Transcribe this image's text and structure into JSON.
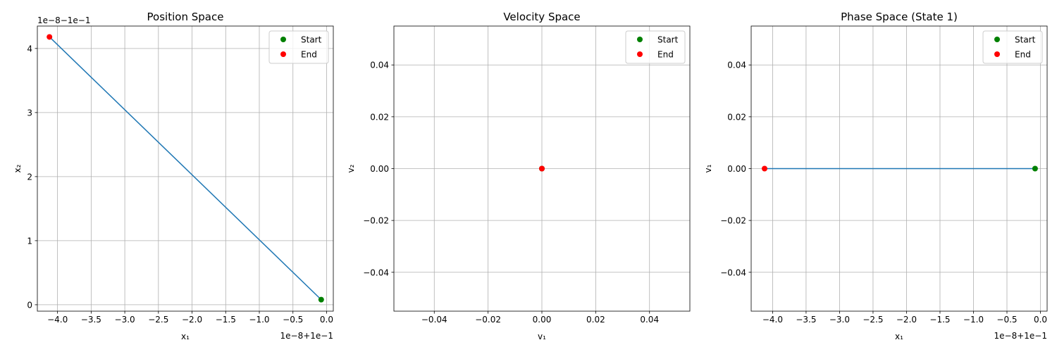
{
  "figure": {
    "background": "#ffffff"
  },
  "chart_data": [
    {
      "type": "line",
      "title": "Position Space",
      "xlabel": "x₁",
      "ylabel": "x₂",
      "xlim": [
        -4.3,
        0.1
      ],
      "ylim": [
        -0.1,
        4.35
      ],
      "xticks": [
        -4.0,
        -3.5,
        -3.0,
        -2.5,
        -2.0,
        -1.5,
        -1.0,
        -0.5,
        0.0
      ],
      "xtick_labels": [
        "−4.0",
        "−3.5",
        "−3.0",
        "−2.5",
        "−2.0",
        "−1.5",
        "−1.0",
        "−0.5",
        "0.0"
      ],
      "yticks": [
        0,
        1,
        2,
        3,
        4
      ],
      "ytick_labels": [
        "0",
        "1",
        "2",
        "3",
        "4"
      ],
      "x_offset_text": "1e−8+1e−1",
      "y_offset_text": "1e−8−1e−1",
      "grid": true,
      "legend_position": "upper-right",
      "series": [
        {
          "color": "#1f77b4",
          "x": [
            -0.08,
            -4.12
          ],
          "y": [
            0.08,
            4.18
          ]
        }
      ],
      "markers": [
        {
          "name": "Start",
          "color": "#008000",
          "x": -0.08,
          "y": 0.08
        },
        {
          "name": "End",
          "color": "#ff0000",
          "x": -4.12,
          "y": 4.18
        }
      ]
    },
    {
      "type": "scatter",
      "title": "Velocity Space",
      "xlabel": "v₁",
      "ylabel": "v₂",
      "xlim": [
        -0.055,
        0.055
      ],
      "ylim": [
        -0.055,
        0.055
      ],
      "xticks": [
        -0.04,
        -0.02,
        0.0,
        0.02,
        0.04
      ],
      "xtick_labels": [
        "−0.04",
        "−0.02",
        "0.00",
        "0.02",
        "0.04"
      ],
      "yticks": [
        -0.04,
        -0.02,
        0.0,
        0.02,
        0.04
      ],
      "ytick_labels": [
        "−0.04",
        "−0.02",
        "0.00",
        "0.02",
        "0.04"
      ],
      "grid": true,
      "legend_position": "upper-right",
      "series": [
        {
          "color": "#1f77b4",
          "x": [
            0.0,
            0.0
          ],
          "y": [
            0.0,
            0.0
          ]
        }
      ],
      "markers": [
        {
          "name": "Start",
          "color": "#008000",
          "x": 0.0,
          "y": 0.0
        },
        {
          "name": "End",
          "color": "#ff0000",
          "x": 0.0,
          "y": 0.0
        }
      ]
    },
    {
      "type": "line",
      "title": "Phase Space (State 1)",
      "xlabel": "x₁",
      "ylabel": "v₁",
      "xlim": [
        -4.32,
        0.1
      ],
      "ylim": [
        -0.055,
        0.055
      ],
      "xticks": [
        -4.0,
        -3.5,
        -3.0,
        -2.5,
        -2.0,
        -1.5,
        -1.0,
        -0.5,
        0.0
      ],
      "xtick_labels": [
        "−4.0",
        "−3.5",
        "−3.0",
        "−2.5",
        "−2.0",
        "−1.5",
        "−1.0",
        "−0.5",
        "0.0"
      ],
      "yticks": [
        -0.04,
        -0.02,
        0.0,
        0.02,
        0.04
      ],
      "ytick_labels": [
        "−0.04",
        "−0.02",
        "0.00",
        "0.02",
        "0.04"
      ],
      "x_offset_text": "1e−8+1e−1",
      "grid": true,
      "legend_position": "upper-right",
      "series": [
        {
          "color": "#1f77b4",
          "x": [
            -0.08,
            -4.12
          ],
          "y": [
            0.0,
            0.0
          ]
        }
      ],
      "markers": [
        {
          "name": "Start",
          "color": "#008000",
          "x": -0.08,
          "y": 0.0
        },
        {
          "name": "End",
          "color": "#ff0000",
          "x": -4.12,
          "y": 0.0
        }
      ]
    }
  ]
}
